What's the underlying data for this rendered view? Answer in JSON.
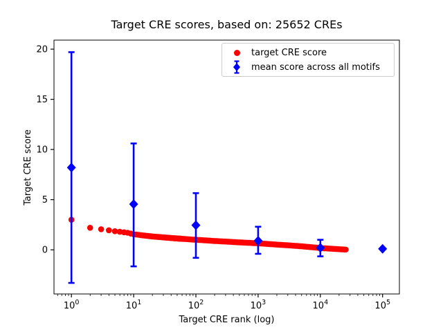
{
  "chart_data": {
    "type": "scatter",
    "title": "Target CRE scores, based on: 25652 CREs",
    "xlabel": "Target CRE rank (log)",
    "ylabel": "Target CRE score",
    "n_cres": 25652,
    "x_scale": "log",
    "grid": false,
    "legend_position": "upper right",
    "xlim_log10": [
      -0.28,
      5.27
    ],
    "ylim": [
      -4.4,
      20.9
    ],
    "x_tick_values": [
      1,
      10,
      100,
      1000,
      10000,
      100000
    ],
    "x_tick_labels": [
      {
        "base": "10",
        "exp": "0"
      },
      {
        "base": "10",
        "exp": "1"
      },
      {
        "base": "10",
        "exp": "2"
      },
      {
        "base": "10",
        "exp": "3"
      },
      {
        "base": "10",
        "exp": "4"
      },
      {
        "base": "10",
        "exp": "5"
      }
    ],
    "y_tick_values": [
      0,
      5,
      10,
      15,
      20
    ],
    "colors": {
      "target": "#ff0000",
      "mean": "#0000ff",
      "axis": "#000000",
      "legend_border": "#cccccc",
      "background": "#ffffff"
    },
    "series": [
      {
        "name": "target CRE score",
        "type": "scatter",
        "marker": "circle",
        "color": "#ff0000",
        "points": [
          [
            1,
            3.0
          ],
          [
            2,
            2.2
          ],
          [
            3,
            2.05
          ],
          [
            4,
            1.95
          ],
          [
            5,
            1.85
          ],
          [
            6,
            1.8
          ],
          [
            7,
            1.75
          ],
          [
            8,
            1.7
          ],
          [
            10,
            1.55
          ],
          [
            15,
            1.42
          ],
          [
            20,
            1.33
          ],
          [
            30,
            1.24
          ],
          [
            50,
            1.13
          ],
          [
            100,
            1.0
          ],
          [
            200,
            0.88
          ],
          [
            300,
            0.82
          ],
          [
            500,
            0.74
          ],
          [
            1000,
            0.65
          ],
          [
            2000,
            0.52
          ],
          [
            3000,
            0.45
          ],
          [
            5000,
            0.35
          ],
          [
            10000,
            0.18
          ],
          [
            15000,
            0.11
          ],
          [
            20000,
            0.06
          ],
          [
            25652,
            0.02
          ]
        ]
      },
      {
        "name": "mean score across all motifs",
        "type": "errorbar",
        "marker": "diamond",
        "color": "#0000ff",
        "points": [
          {
            "x": 1,
            "y": 8.2,
            "lo": -3.3,
            "hi": 19.7
          },
          {
            "x": 10,
            "y": 4.55,
            "lo": -1.65,
            "hi": 10.6
          },
          {
            "x": 100,
            "y": 2.45,
            "lo": -0.8,
            "hi": 5.65
          },
          {
            "x": 1000,
            "y": 0.9,
            "lo": -0.4,
            "hi": 2.3
          },
          {
            "x": 10000,
            "y": 0.2,
            "lo": -0.65,
            "hi": 1.0
          },
          {
            "x": 100000,
            "y": 0.1,
            "lo": 0.1,
            "hi": 0.1
          }
        ]
      }
    ]
  }
}
